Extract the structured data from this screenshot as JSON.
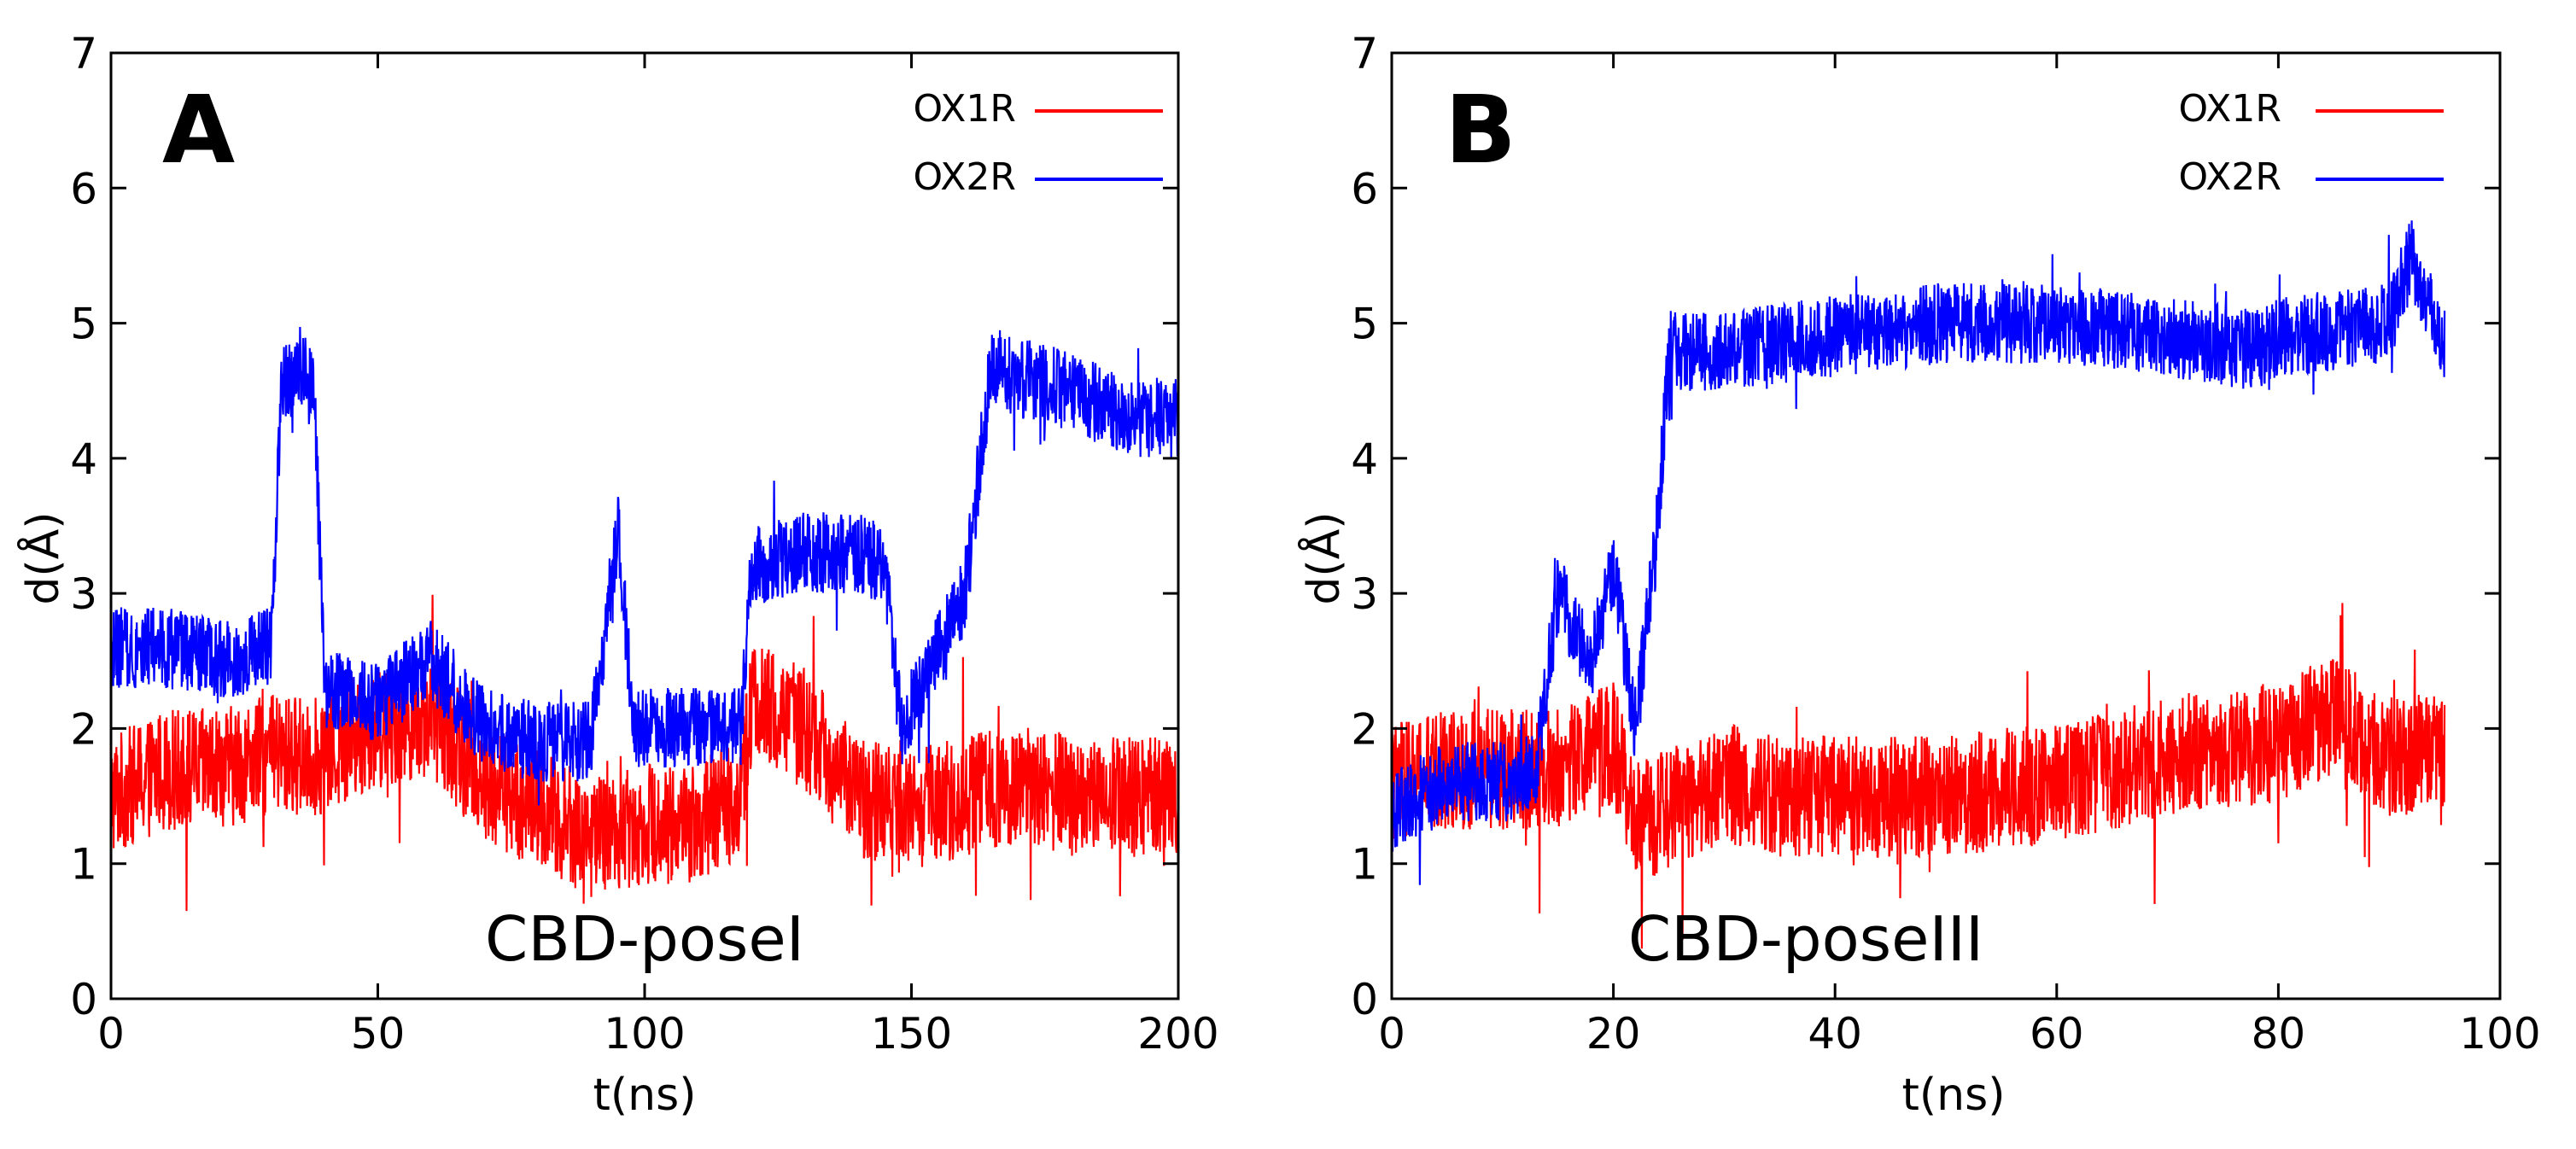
{
  "chart_data": [
    {
      "type": "line",
      "panel": "A",
      "annotation": "CBD-poseI",
      "xlabel": "t(ns)",
      "ylabel": "d(Å)",
      "xlim": [
        0,
        200
      ],
      "ylim": [
        0,
        7
      ],
      "xticks": [
        0,
        50,
        100,
        150,
        200
      ],
      "yticks": [
        0,
        1,
        2,
        3,
        4,
        5,
        6,
        7
      ],
      "grid": false,
      "legend_position": "top-right",
      "series": [
        {
          "name": "OX1R",
          "color": "#ff0000",
          "x": [
            0,
            10,
            20,
            30,
            40,
            50,
            60,
            70,
            80,
            90,
            100,
            110,
            118,
            120,
            130,
            140,
            150,
            160,
            170,
            180,
            190,
            200
          ],
          "values": [
            1.5,
            1.7,
            1.7,
            1.8,
            1.8,
            2.0,
            2.1,
            1.6,
            1.4,
            1.2,
            1.3,
            1.3,
            1.5,
            2.2,
            2.0,
            1.5,
            1.4,
            1.5,
            1.6,
            1.5,
            1.5,
            1.5
          ],
          "noise": 0.45
        },
        {
          "name": "OX2R",
          "color": "#0000ff",
          "x": [
            0,
            10,
            20,
            30,
            32,
            38,
            40,
            50,
            60,
            70,
            80,
            90,
            95,
            98,
            100,
            110,
            118,
            120,
            130,
            140,
            145,
            148,
            152,
            160,
            165,
            170,
            180,
            190,
            200
          ],
          "values": [
            2.6,
            2.6,
            2.5,
            2.6,
            4.6,
            4.6,
            2.3,
            2.2,
            2.5,
            2.0,
            1.9,
            1.9,
            3.5,
            2.0,
            2.0,
            2.0,
            2.0,
            3.2,
            3.3,
            3.3,
            3.2,
            2.0,
            2.3,
            3.0,
            4.7,
            4.6,
            4.5,
            4.3,
            4.3
          ],
          "noise": 0.3
        }
      ]
    },
    {
      "type": "line",
      "panel": "B",
      "annotation": "CBD-poseIII",
      "xlabel": "t(ns)",
      "ylabel": "d(Å)",
      "xlim": [
        0,
        100
      ],
      "ylim": [
        0,
        7
      ],
      "xticks": [
        0,
        20,
        40,
        60,
        80,
        100
      ],
      "yticks": [
        0,
        1,
        2,
        3,
        4,
        5,
        6,
        7
      ],
      "grid": false,
      "legend_position": "top-right",
      "series": [
        {
          "name": "OX1R",
          "color": "#ff0000",
          "x": [
            0,
            5,
            10,
            15,
            20,
            22,
            25,
            30,
            35,
            40,
            50,
            60,
            70,
            80,
            85,
            90,
            95
          ],
          "values": [
            1.6,
            1.7,
            1.7,
            1.7,
            1.9,
            1.3,
            1.4,
            1.6,
            1.5,
            1.5,
            1.5,
            1.6,
            1.8,
            1.9,
            2.1,
            1.8,
            1.8
          ],
          "noise": 0.45
        },
        {
          "name": "OX2R",
          "color": "#0000ff",
          "x": [
            0,
            5,
            10,
            13,
            15,
            18,
            20,
            22,
            24,
            25,
            30,
            40,
            50,
            60,
            70,
            78,
            80,
            90,
            92,
            95
          ],
          "values": [
            1.4,
            1.6,
            1.6,
            1.7,
            3.0,
            2.5,
            3.2,
            2.0,
            3.5,
            4.8,
            4.8,
            4.9,
            5.0,
            5.0,
            4.9,
            4.8,
            4.9,
            5.0,
            5.5,
            4.8
          ],
          "noise": 0.3
        }
      ]
    }
  ]
}
